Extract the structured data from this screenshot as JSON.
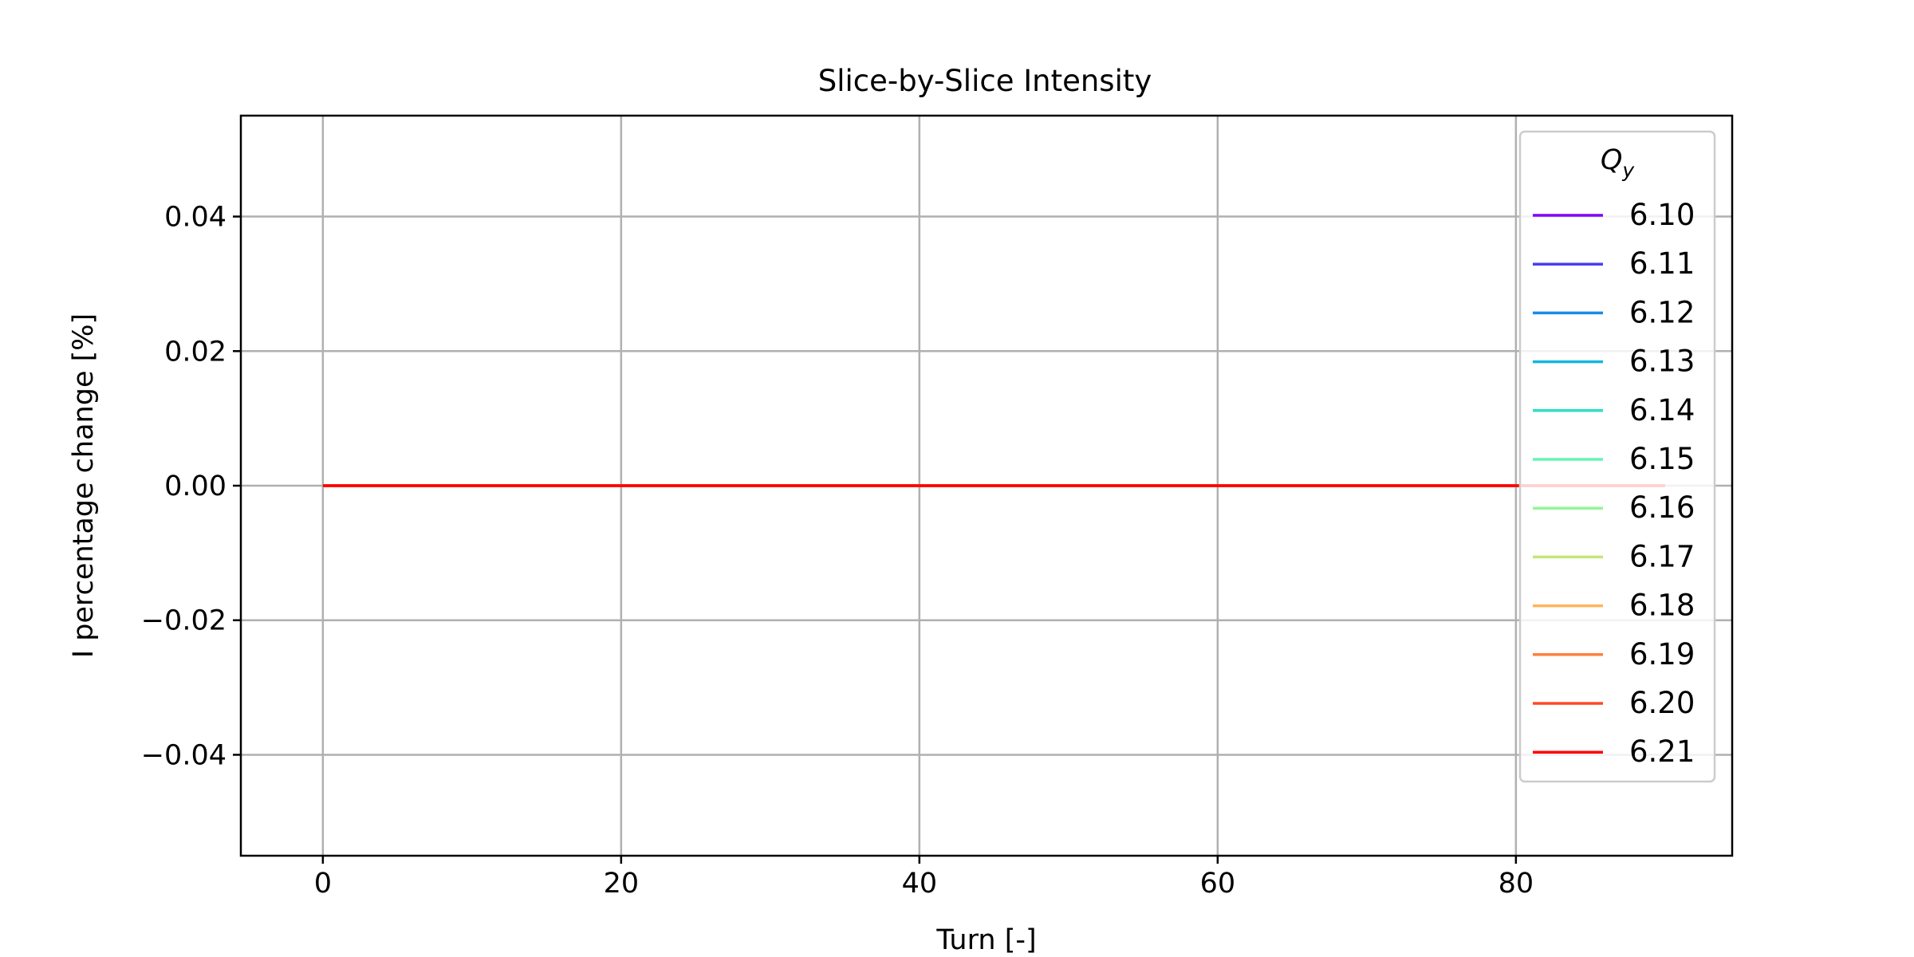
{
  "chart_data": {
    "type": "line",
    "title": "Slice-by-Slice Intensity",
    "xlabel": "Turn [-]",
    "ylabel": "I percentage change [%]",
    "xlim": [
      -5.5,
      94.5
    ],
    "ylim": [
      -0.055,
      0.055
    ],
    "xticks": [
      0,
      20,
      40,
      60,
      80
    ],
    "xtick_labels": [
      "0",
      "20",
      "40",
      "60",
      "80"
    ],
    "yticks": [
      0.04,
      0.02,
      0.0,
      -0.02,
      -0.04
    ],
    "ytick_labels": [
      "0.04",
      "0.02",
      "0.00",
      "−0.02",
      "−0.04"
    ],
    "grid": true,
    "legend": {
      "placement": "upper-right",
      "title_base": "Q",
      "title_sub": "y"
    },
    "x": [
      0,
      90
    ],
    "series": [
      {
        "name": "6.10",
        "color": "#7f00ff",
        "values": [
          0,
          0
        ]
      },
      {
        "name": "6.11",
        "color": "#4a3ff0",
        "values": [
          0,
          0
        ]
      },
      {
        "name": "6.12",
        "color": "#1a8ae6",
        "values": [
          0,
          0
        ]
      },
      {
        "name": "6.13",
        "color": "#14b5e0",
        "values": [
          0,
          0
        ]
      },
      {
        "name": "6.14",
        "color": "#2de0c8",
        "values": [
          0,
          0
        ]
      },
      {
        "name": "6.15",
        "color": "#66f5b4",
        "values": [
          0,
          0
        ]
      },
      {
        "name": "6.16",
        "color": "#94f595",
        "values": [
          0,
          0
        ]
      },
      {
        "name": "6.17",
        "color": "#c2e67a",
        "values": [
          0,
          0
        ]
      },
      {
        "name": "6.18",
        "color": "#ffb55a",
        "values": [
          0,
          0
        ]
      },
      {
        "name": "6.19",
        "color": "#ff7f3f",
        "values": [
          0,
          0
        ]
      },
      {
        "name": "6.20",
        "color": "#ff4a25",
        "values": [
          0,
          0
        ]
      },
      {
        "name": "6.21",
        "color": "#ff0000",
        "values": [
          0,
          0
        ]
      }
    ]
  }
}
